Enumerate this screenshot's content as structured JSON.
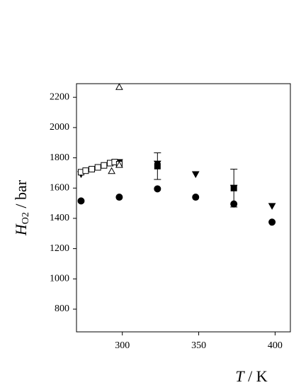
{
  "chart_data": {
    "type": "scatter",
    "xlabel": {
      "symbol": "T",
      "unit": " / K"
    },
    "ylabel": {
      "symbol": "H",
      "sub": "O2",
      "unit": " / bar"
    },
    "xlim": [
      270,
      410
    ],
    "xticks": [
      300,
      350,
      400
    ],
    "ylim": [
      650,
      2290
    ],
    "yticks": [
      800,
      1000,
      1200,
      1400,
      1600,
      1800,
      2000,
      2200
    ],
    "series": [
      {
        "marker": "circle",
        "filled": true,
        "color": "#000000",
        "x": [
          273,
          298,
          323,
          348,
          373,
          398
        ],
        "values": [
          1515,
          1540,
          1595,
          1540,
          1495,
          1375
        ]
      },
      {
        "marker": "triangle-down",
        "filled": true,
        "color": "#000000",
        "x": [
          273,
          298,
          323,
          348,
          373,
          398
        ],
        "values": [
          1690,
          1770,
          1760,
          1690,
          1600,
          1480
        ]
      },
      {
        "marker": "square",
        "filled": true,
        "color": "#000000",
        "x": [
          298,
          323,
          373
        ],
        "values": [
          1765,
          1745,
          1600
        ],
        "errors": [
          null,
          88,
          125
        ]
      },
      {
        "marker": "square",
        "filled": false,
        "color": "#000000",
        "x": [
          273,
          276,
          280,
          284,
          288,
          292,
          295,
          298
        ],
        "values": [
          1705,
          1715,
          1725,
          1737,
          1750,
          1765,
          1772,
          1758
        ]
      },
      {
        "marker": "triangle-up",
        "filled": false,
        "color": "#000000",
        "x": [
          298,
          293,
          298
        ],
        "values": [
          2270,
          1715,
          1755
        ]
      }
    ]
  }
}
